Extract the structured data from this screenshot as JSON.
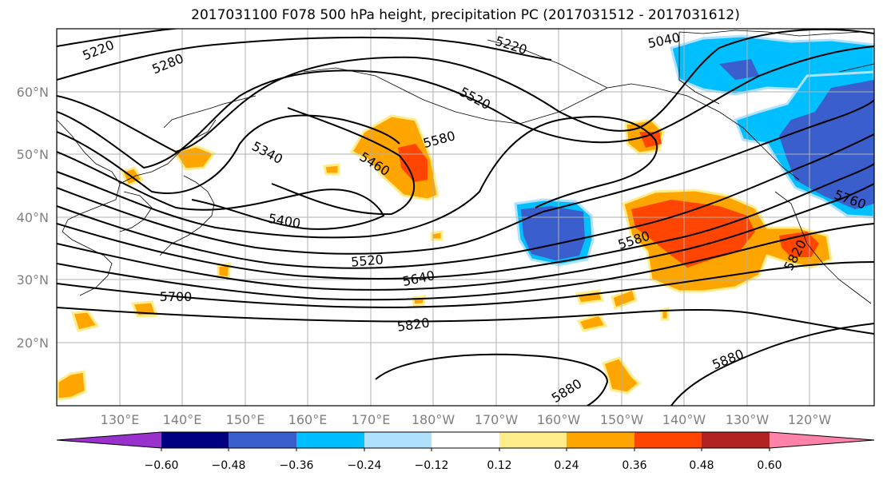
{
  "title": "2017031100 F078 500 hPa height, precipitation PC (2017031512 - 2017031612)",
  "lat_labels": [
    "60°N",
    "50°N",
    "40°N",
    "30°N",
    "20°N"
  ],
  "lon_labels": [
    "130°E",
    "140°E",
    "150°E",
    "160°E",
    "170°E",
    "180°W",
    "170°W",
    "160°W",
    "150°W",
    "140°W",
    "130°W",
    "120°W"
  ],
  "contour_labels": [
    "5220",
    "5280",
    "5220",
    "5040",
    "5520",
    "5340",
    "5460",
    "5580",
    "5400",
    "5520",
    "5640",
    "5580",
    "5760",
    "5700",
    "5820",
    "5820",
    "5880",
    "5880"
  ],
  "colorbar": {
    "ticks": [
      "−0.60",
      "−0.48",
      "−0.36",
      "−0.24",
      "−0.12",
      "0.12",
      "0.24",
      "0.36",
      "0.48",
      "0.60"
    ],
    "colors": [
      "#9932CC",
      "#000080",
      "#3A5FCD",
      "#00BFFF",
      "#B0E2FF",
      "#FFFFFF",
      "#FFEC8B",
      "#FFA500",
      "#FF4500",
      "#B22222",
      "#FF82AB"
    ]
  }
}
